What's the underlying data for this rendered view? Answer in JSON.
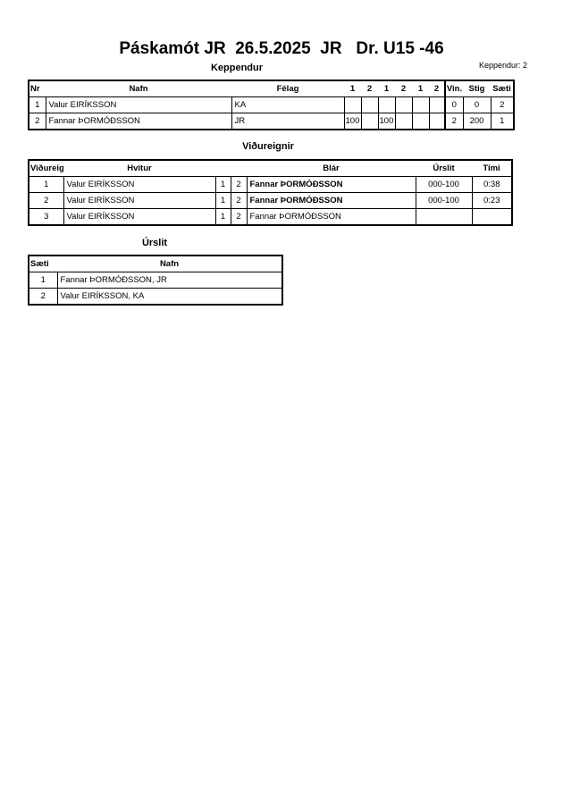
{
  "title": "Páskamót JR  26.5.2025  JR   Dr. U15 -46",
  "keppendur": {
    "heading": "Keppendur",
    "count_label": "Keppendur: 2",
    "columns": [
      "Nr",
      "Nafn",
      "Félag",
      "1",
      "2",
      "1",
      "2",
      "1",
      "2",
      "Vin.",
      "Stig",
      "Sæti"
    ],
    "rows": [
      {
        "nr": "1",
        "name": "Valur EIRÍKSSON",
        "club": "KA",
        "scores": [
          "",
          "",
          "",
          "",
          "",
          ""
        ],
        "wins": "0",
        "points": "0",
        "place": "2"
      },
      {
        "nr": "2",
        "name": "Fannar ÞORMÓÐSSON",
        "club": "JR",
        "scores": [
          "100",
          "",
          "100",
          "",
          "",
          ""
        ],
        "wins": "2",
        "points": "200",
        "place": "1"
      }
    ]
  },
  "vidureignir": {
    "heading": "Viðureignir",
    "columns": [
      "Viðureign",
      "Hvitur",
      "",
      "",
      "Blár",
      "Úrslit",
      "Timi"
    ],
    "rows": [
      {
        "no": "1",
        "white": "Valur EIRÍKSSON",
        "w": "1",
        "b": "2",
        "blue": "Fannar ÞORMÓÐSSON",
        "blue_bold": true,
        "result": "000-100",
        "time": "0:38"
      },
      {
        "no": "2",
        "white": "Valur EIRÍKSSON",
        "w": "1",
        "b": "2",
        "blue": "Fannar ÞORMÓÐSSON",
        "blue_bold": true,
        "result": "000-100",
        "time": "0:23"
      },
      {
        "no": "3",
        "white": "Valur EIRÍKSSON",
        "w": "1",
        "b": "2",
        "blue": "Fannar ÞORMÓÐSSON",
        "blue_bold": false,
        "result": "",
        "time": ""
      }
    ]
  },
  "urslit": {
    "heading": "Úrslit",
    "columns": [
      "Sæti",
      "Nafn"
    ],
    "rows": [
      {
        "place": "1",
        "name": "Fannar ÞORMÓÐSSON, JR"
      },
      {
        "place": "2",
        "name": "Valur EIRÍKSSON, KA"
      }
    ]
  }
}
